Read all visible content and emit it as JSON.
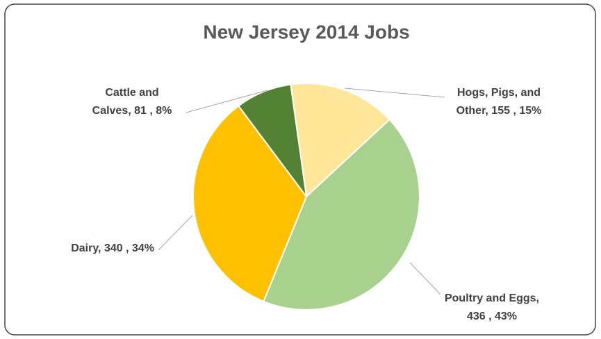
{
  "chart_data": {
    "type": "pie",
    "title": "New Jersey 2014 Jobs",
    "values": [
      155,
      436,
      340,
      81
    ],
    "value_labels": [
      [
        "Hogs, Pigs, and",
        "Other,  155 , 15%"
      ],
      [
        "Poultry and Eggs,",
        "436 , 43%"
      ],
      [
        "Dairy,  340 , 34%"
      ],
      [
        "Cattle and",
        "Calves,  81 , 8%"
      ]
    ],
    "colors": [
      "#ffe699",
      "#a9d18e",
      "#ffc000",
      "#548235"
    ]
  }
}
